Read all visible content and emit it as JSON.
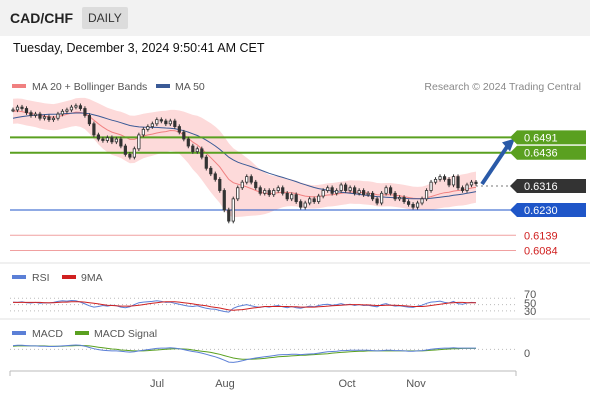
{
  "header": {
    "pair": "CAD/CHF",
    "timeframe": "DAILY",
    "datetime": "Tuesday, December 3, 2024 9:50:41 AM CET"
  },
  "legend": {
    "ma20": "MA 20 + Bollinger Bands",
    "ma50": "MA 50",
    "credit": "Research © 2024 Trading Central"
  },
  "colors": {
    "ma20": "#f08080",
    "ma50": "#3a5a96",
    "bollinger": "#fddada",
    "green": "#5aa020",
    "blue": "#1f56c8",
    "red": "#d02020",
    "rsi": "#5b7fd6",
    "macd": "#5b7fd6",
    "macd_signal": "#5aa020",
    "candle": "#333333"
  },
  "levels": [
    {
      "label": "0.6491",
      "style": "green-box"
    },
    {
      "label": "0.6436",
      "style": "green-box"
    },
    {
      "label": "0.6316",
      "style": "dark-box"
    },
    {
      "label": "0.6230",
      "style": "blue-box"
    },
    {
      "label": "0.6139",
      "style": "red-text"
    },
    {
      "label": "0.6084",
      "style": "red-text"
    }
  ],
  "rsi_panel": {
    "rsi_label": "RSI",
    "ma_label": "9MA",
    "ticks": [
      "70",
      "50",
      "30"
    ]
  },
  "macd_panel": {
    "macd_label": "MACD",
    "signal_label": "MACD Signal",
    "ticks": [
      "0"
    ]
  },
  "x_axis": {
    "labels": [
      "Jul",
      "Aug",
      "Oct",
      "Nov"
    ]
  },
  "chart_data": {
    "type": "candlestick",
    "ylim": [
      0.605,
      0.664
    ],
    "horizontal_levels": [
      0.6491,
      0.6436,
      0.6316,
      0.623,
      0.6139,
      0.6084
    ],
    "close": [
      0.659,
      0.66,
      0.6595,
      0.658,
      0.657,
      0.6575,
      0.656,
      0.6565,
      0.6555,
      0.656,
      0.6575,
      0.6585,
      0.659,
      0.66,
      0.6605,
      0.6595,
      0.657,
      0.654,
      0.65,
      0.6485,
      0.648,
      0.649,
      0.6475,
      0.6485,
      0.646,
      0.643,
      0.642,
      0.645,
      0.65,
      0.652,
      0.653,
      0.654,
      0.6555,
      0.655,
      0.654,
      0.655,
      0.653,
      0.651,
      0.6485,
      0.646,
      0.644,
      0.645,
      0.642,
      0.638,
      0.636,
      0.634,
      0.63,
      0.623,
      0.619,
      0.627,
      0.631,
      0.633,
      0.635,
      0.633,
      0.631,
      0.629,
      0.63,
      0.6285,
      0.63,
      0.631,
      0.629,
      0.627,
      0.6285,
      0.626,
      0.624,
      0.6255,
      0.627,
      0.626,
      0.628,
      0.63,
      0.631,
      0.629,
      0.63,
      0.632,
      0.63,
      0.631,
      0.629,
      0.63,
      0.6285,
      0.629,
      0.627,
      0.6255,
      0.629,
      0.631,
      0.629,
      0.627,
      0.6275,
      0.626,
      0.625,
      0.624,
      0.6255,
      0.627,
      0.63,
      0.633,
      0.634,
      0.635,
      0.634,
      0.632,
      0.635,
      0.631,
      0.63,
      0.632,
      0.633,
      0.6325
    ],
    "ma20": [
      0.6585,
      0.6586,
      0.6584,
      0.658,
      0.6577,
      0.6574,
      0.657,
      0.6567,
      0.6565,
      0.6564,
      0.6566,
      0.657,
      0.6574,
      0.6578,
      0.6582,
      0.6581,
      0.6577,
      0.6567,
      0.6553,
      0.654,
      0.6528,
      0.6518,
      0.651,
      0.6505,
      0.65,
      0.6492,
      0.6484,
      0.6484,
      0.649,
      0.6496,
      0.65,
      0.6503,
      0.6507,
      0.651,
      0.6512,
      0.6516,
      0.6515,
      0.651,
      0.65,
      0.6488,
      0.6474,
      0.6464,
      0.645,
      0.6434,
      0.6418,
      0.6402,
      0.6385,
      0.6362,
      0.634,
      0.6328,
      0.6323,
      0.6318,
      0.6313,
      0.6307,
      0.63,
      0.6294,
      0.629,
      0.6288,
      0.629,
      0.6292,
      0.6294,
      0.6293,
      0.6292,
      0.6289,
      0.6284,
      0.628,
      0.6278,
      0.6277,
      0.6278,
      0.6281,
      0.6284,
      0.6285,
      0.6287,
      0.629,
      0.6292,
      0.6295,
      0.6294,
      0.6294,
      0.6292,
      0.6291,
      0.6289,
      0.6285,
      0.6284,
      0.6285,
      0.6285,
      0.6283,
      0.6281,
      0.6278,
      0.6275,
      0.6272,
      0.6271,
      0.6271,
      0.6274,
      0.6278,
      0.6283,
      0.6288,
      0.6292,
      0.6294,
      0.6298,
      0.63,
      0.6302,
      0.6305,
      0.6309,
      0.6312
    ],
    "ma50": [
      0.656,
      0.6563,
      0.6566,
      0.6568,
      0.657,
      0.6571,
      0.6572,
      0.6573,
      0.6574,
      0.6574,
      0.6575,
      0.6576,
      0.6577,
      0.6578,
      0.6579,
      0.6579,
      0.6578,
      0.6576,
      0.6572,
      0.6568,
      0.6563,
      0.6558,
      0.6553,
      0.6549,
      0.6544,
      0.6539,
      0.6534,
      0.6531,
      0.6529,
      0.6528,
      0.6527,
      0.6527,
      0.6527,
      0.6526,
      0.6525,
      0.6524,
      0.6522,
      0.6519,
      0.6515,
      0.651,
      0.6504,
      0.6498,
      0.649,
      0.6481,
      0.6471,
      0.646,
      0.6448,
      0.6434,
      0.642,
      0.641,
      0.6402,
      0.6396,
      0.6391,
      0.6386,
      0.638,
      0.6374,
      0.6368,
      0.6362,
      0.6357,
      0.6352,
      0.6347,
      0.6342,
      0.6337,
      0.6332,
      0.6326,
      0.6321,
      0.6316,
      0.6311,
      0.6307,
      0.6304,
      0.6301,
      0.6298,
      0.6296,
      0.6294,
      0.6292,
      0.629,
      0.6288,
      0.6286,
      0.6284,
      0.6282,
      0.628,
      0.6278,
      0.6277,
      0.6276,
      0.6275,
      0.6274,
      0.6273,
      0.6272,
      0.6271,
      0.627,
      0.627,
      0.627,
      0.6271,
      0.6272,
      0.6274,
      0.6276,
      0.6278,
      0.628,
      0.6283,
      0.6285,
      0.6287,
      0.629,
      0.6293,
      0.6296
    ],
    "bollinger_width": [
      0.0045,
      0.0045,
      0.0046,
      0.0046,
      0.0046,
      0.0046,
      0.0047,
      0.0047,
      0.0047,
      0.0047,
      0.0048,
      0.0048,
      0.0048,
      0.0048,
      0.005,
      0.0052,
      0.0056,
      0.0062,
      0.0068,
      0.0074,
      0.0078,
      0.008,
      0.0082,
      0.0082,
      0.0083,
      0.0085,
      0.0086,
      0.0085,
      0.0082,
      0.008,
      0.0079,
      0.0078,
      0.0077,
      0.0076,
      0.0075,
      0.0074,
      0.0075,
      0.0078,
      0.0084,
      0.009,
      0.0098,
      0.0105,
      0.0112,
      0.0118,
      0.0124,
      0.0128,
      0.013,
      0.0132,
      0.013,
      0.0124,
      0.0118,
      0.0112,
      0.0105,
      0.0098,
      0.009,
      0.0082,
      0.0075,
      0.0068,
      0.0063,
      0.0058,
      0.0054,
      0.005,
      0.0048,
      0.0046,
      0.0045,
      0.0044,
      0.0043,
      0.0042,
      0.0042,
      0.0042,
      0.0042,
      0.0042,
      0.0042,
      0.0042,
      0.0042,
      0.0042,
      0.0042,
      0.0042,
      0.0042,
      0.0042,
      0.0042,
      0.0042,
      0.0042,
      0.0042,
      0.0042,
      0.0042,
      0.0042,
      0.0042,
      0.0042,
      0.0042,
      0.0042,
      0.0043,
      0.0045,
      0.0048,
      0.005,
      0.0052,
      0.0053,
      0.0054,
      0.0055,
      0.0055,
      0.0056,
      0.0056,
      0.0056,
      0.0056
    ],
    "projection": {
      "from": 0.6316,
      "to": 0.6491
    },
    "rsi": [
      58,
      57,
      59,
      56,
      55,
      57,
      54,
      56,
      55,
      57,
      60,
      62,
      61,
      63,
      62,
      58,
      52,
      46,
      42,
      44,
      47,
      45,
      48,
      46,
      42,
      40,
      43,
      50,
      56,
      58,
      59,
      60,
      62,
      60,
      57,
      58,
      54,
      51,
      48,
      45,
      44,
      46,
      42,
      38,
      36,
      35,
      31,
      28,
      26,
      38,
      44,
      47,
      50,
      46,
      43,
      41,
      44,
      42,
      45,
      47,
      43,
      40,
      44,
      40,
      38,
      42,
      45,
      43,
      47,
      50,
      51,
      48,
      50,
      53,
      49,
      51,
      47,
      50,
      47,
      48,
      45,
      43,
      50,
      53,
      48,
      45,
      46,
      44,
      42,
      41,
      45,
      48,
      54,
      58,
      59,
      61,
      57,
      55,
      60,
      53,
      51,
      55,
      57,
      56
    ],
    "rsi_ma": [
      57,
      57,
      57,
      57,
      57,
      57,
      57,
      56,
      56,
      56,
      57,
      58,
      58,
      59,
      59,
      59,
      58,
      56,
      54,
      52,
      50,
      48,
      47,
      46,
      45,
      45,
      45,
      46,
      48,
      50,
      52,
      54,
      56,
      58,
      59,
      59,
      59,
      58,
      56,
      54,
      52,
      50,
      48,
      46,
      43,
      41,
      39,
      36,
      33,
      32,
      33,
      34,
      36,
      38,
      40,
      42,
      44,
      44,
      44,
      44,
      44,
      44,
      43,
      43,
      42,
      42,
      42,
      42,
      43,
      44,
      45,
      46,
      47,
      48,
      49,
      50,
      50,
      50,
      49,
      49,
      48,
      47,
      47,
      48,
      48,
      48,
      47,
      46,
      45,
      44,
      44,
      44,
      45,
      47,
      49,
      51,
      53,
      55,
      56,
      57,
      57,
      56,
      56,
      56
    ],
    "macd": [
      0.0012,
      0.0013,
      0.0013,
      0.0012,
      0.0011,
      0.0011,
      0.001,
      0.001,
      0.0009,
      0.0009,
      0.001,
      0.0011,
      0.0012,
      0.0013,
      0.0014,
      0.0013,
      0.001,
      0.0006,
      0.0002,
      -0.0001,
      -0.0003,
      -0.0004,
      -0.0005,
      -0.0005,
      -0.0006,
      -0.0008,
      -0.0009,
      -0.0008,
      -0.0005,
      -0.0003,
      -0.0001,
      0.0001,
      0.0003,
      0.0004,
      0.0004,
      0.0005,
      0.0004,
      0.0002,
      -0.0001,
      -0.0004,
      -0.0007,
      -0.0009,
      -0.0012,
      -0.0016,
      -0.002,
      -0.0024,
      -0.0029,
      -0.0035,
      -0.0041,
      -0.0042,
      -0.004,
      -0.0037,
      -0.0033,
      -0.003,
      -0.0028,
      -0.0026,
      -0.0024,
      -0.0022,
      -0.002,
      -0.0018,
      -0.0017,
      -0.0017,
      -0.0016,
      -0.0016,
      -0.0017,
      -0.0016,
      -0.0015,
      -0.0014,
      -0.0012,
      -0.001,
      -0.0008,
      -0.0007,
      -0.0006,
      -0.0004,
      -0.0004,
      -0.0003,
      -0.0003,
      -0.0003,
      -0.0003,
      -0.0003,
      -0.0004,
      -0.0005,
      -0.0004,
      -0.0003,
      -0.0003,
      -0.0004,
      -0.0004,
      -0.0005,
      -0.0006,
      -0.0006,
      -0.0005,
      -0.0004,
      -0.0002,
      0.0,
      0.0002,
      0.0003,
      0.0004,
      0.0004,
      0.0005,
      0.0004,
      0.0004,
      0.0004,
      0.0004,
      0.0004
    ],
    "macd_signal": [
      0.001,
      0.0011,
      0.0011,
      0.0011,
      0.0011,
      0.0011,
      0.0011,
      0.0011,
      0.001,
      0.001,
      0.001,
      0.001,
      0.0011,
      0.0011,
      0.0012,
      0.0012,
      0.0012,
      0.0011,
      0.0009,
      0.0007,
      0.0005,
      0.0003,
      0.0001,
      0.0,
      -0.0002,
      -0.0003,
      -0.0004,
      -0.0005,
      -0.0005,
      -0.0005,
      -0.0004,
      -0.0003,
      -0.0002,
      -0.0001,
      0.0,
      0.0001,
      0.0002,
      0.0002,
      0.0001,
      0.0,
      -0.0002,
      -0.0004,
      -0.0006,
      -0.0008,
      -0.001,
      -0.0013,
      -0.0016,
      -0.002,
      -0.0024,
      -0.0028,
      -0.003,
      -0.0032,
      -0.0032,
      -0.0032,
      -0.0031,
      -0.003,
      -0.0029,
      -0.0027,
      -0.0026,
      -0.0024,
      -0.0023,
      -0.0022,
      -0.0021,
      -0.002,
      -0.0019,
      -0.0019,
      -0.0018,
      -0.0017,
      -0.0016,
      -0.0015,
      -0.0014,
      -0.0012,
      -0.0011,
      -0.001,
      -0.0009,
      -0.0008,
      -0.0007,
      -0.0006,
      -0.0006,
      -0.0005,
      -0.0005,
      -0.0005,
      -0.0005,
      -0.0005,
      -0.0005,
      -0.0005,
      -0.0005,
      -0.0005,
      -0.0005,
      -0.0005,
      -0.0005,
      -0.0005,
      -0.0004,
      -0.0003,
      -0.0002,
      -0.0001,
      0.0,
      0.0001,
      0.0002,
      0.0002,
      0.0003,
      0.0003,
      0.0003,
      0.0003
    ],
    "macd_ylim": [
      -0.006,
      0.003
    ]
  }
}
